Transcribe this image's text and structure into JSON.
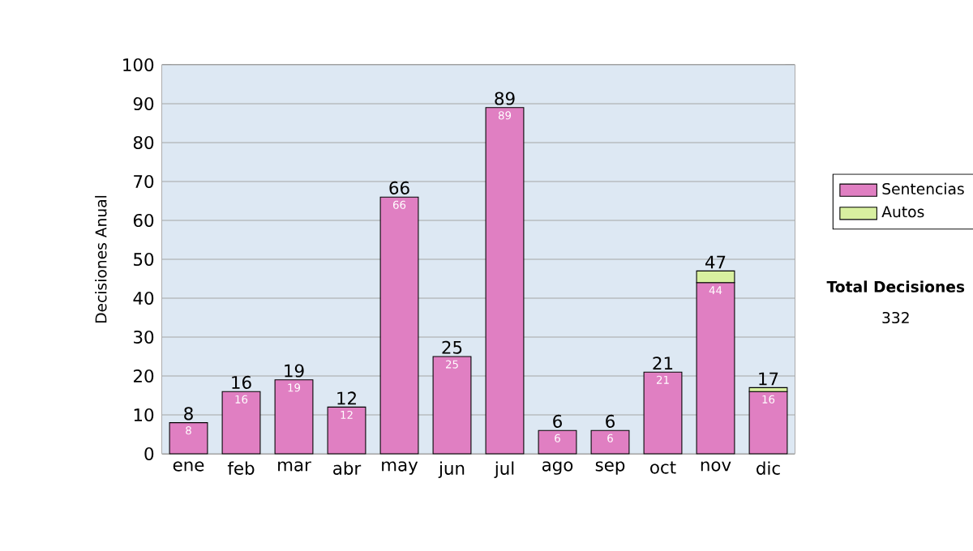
{
  "chart_data": {
    "type": "bar",
    "stacked": true,
    "ylabel": "Decisiones Anual",
    "categories": [
      "ene",
      "feb",
      "mar",
      "abr",
      "may",
      "jun",
      "jul",
      "ago",
      "sep",
      "oct",
      "nov",
      "dic"
    ],
    "series": [
      {
        "name": "Sentencias",
        "color": "#e07fc2",
        "values": [
          8,
          16,
          19,
          12,
          66,
          25,
          89,
          6,
          6,
          21,
          44,
          16
        ],
        "value_labels": [
          "8",
          "16",
          "19",
          "12",
          "66",
          "25",
          "89",
          "6",
          "6",
          "21",
          "44",
          "16"
        ]
      },
      {
        "name": "Autos",
        "color": "#d8f0a0",
        "values": [
          null,
          null,
          null,
          null,
          null,
          null,
          null,
          null,
          null,
          null,
          3,
          1
        ]
      }
    ],
    "totals": [
      "8",
      "16",
      "19",
      "12",
      "66",
      "25",
      "89",
      "6",
      "6",
      "21",
      "47",
      "17"
    ],
    "ylim": [
      0,
      100
    ],
    "yticks": [
      0,
      10,
      20,
      30,
      40,
      50,
      60,
      70,
      80,
      90,
      100
    ],
    "grid": "y",
    "legend": "right",
    "annotations": [
      "**Total Decisiones**",
      "332"
    ]
  }
}
